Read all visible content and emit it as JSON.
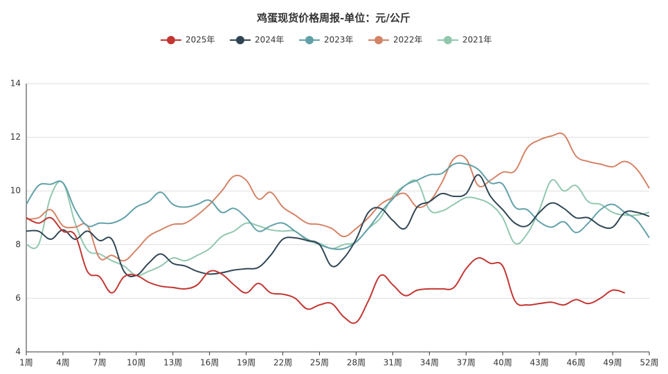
{
  "chart_data": {
    "type": "line",
    "title": "鸡蛋现货价格周报-单位：元/公斤",
    "categories": [
      "1周",
      null,
      null,
      "4周",
      null,
      null,
      "7周",
      null,
      null,
      "10周",
      null,
      null,
      "13周",
      null,
      null,
      "16周",
      null,
      null,
      "19周",
      null,
      null,
      "22周",
      null,
      null,
      "25周",
      null,
      null,
      "28周",
      null,
      null,
      "31周",
      null,
      null,
      "34周",
      null,
      null,
      "37周",
      null,
      null,
      "40周",
      null,
      null,
      "43周",
      null,
      null,
      "46周",
      null,
      null,
      "49周",
      null,
      null,
      "52周"
    ],
    "series": [
      {
        "name": "2025年",
        "color": "#c23531",
        "values": [
          9.0,
          8.8,
          9.0,
          8.5,
          8.35,
          7.0,
          6.8,
          6.2,
          6.8,
          6.85,
          6.6,
          6.45,
          6.4,
          6.35,
          6.5,
          7.0,
          6.9,
          6.5,
          6.2,
          6.55,
          6.2,
          6.15,
          6.0,
          5.6,
          5.75,
          5.8,
          5.3,
          5.1,
          5.9,
          6.85,
          6.5,
          6.1,
          6.3,
          6.35,
          6.35,
          6.4,
          7.1,
          7.5,
          7.3,
          7.2,
          5.9,
          5.75,
          5.8,
          5.85,
          5.75,
          5.95,
          5.8,
          6.0,
          6.3,
          6.2,
          null,
          null
        ]
      },
      {
        "name": "2024年",
        "color": "#2f4554",
        "values": [
          8.5,
          8.5,
          8.2,
          8.55,
          8.2,
          8.5,
          8.15,
          8.2,
          7.0,
          6.85,
          7.3,
          7.65,
          7.3,
          7.2,
          7.0,
          6.9,
          6.95,
          7.05,
          7.1,
          7.15,
          7.6,
          8.2,
          8.25,
          8.15,
          8.0,
          7.2,
          7.5,
          8.2,
          9.2,
          9.35,
          8.9,
          8.6,
          9.4,
          9.6,
          9.9,
          9.8,
          9.9,
          10.6,
          9.8,
          9.3,
          8.8,
          8.7,
          9.2,
          9.55,
          9.35,
          9.0,
          9.0,
          8.7,
          8.65,
          9.2,
          9.2,
          9.05
        ]
      },
      {
        "name": "2023年",
        "color": "#61a0a8",
        "values": [
          9.5,
          10.2,
          10.25,
          10.3,
          9.3,
          8.7,
          8.8,
          8.8,
          9.0,
          9.4,
          9.6,
          9.95,
          9.5,
          9.4,
          9.5,
          9.65,
          9.2,
          9.35,
          9.0,
          8.5,
          8.7,
          8.8,
          8.5,
          8.2,
          8.0,
          7.85,
          7.85,
          8.1,
          8.6,
          9.2,
          9.7,
          10.2,
          10.4,
          10.6,
          10.65,
          11.0,
          11.0,
          10.8,
          10.3,
          10.25,
          9.4,
          9.3,
          8.85,
          8.65,
          8.85,
          8.45,
          8.8,
          9.3,
          9.5,
          9.2,
          8.9,
          8.25
        ]
      },
      {
        "name": "2022年",
        "color": "#d48265",
        "values": [
          8.95,
          9.0,
          9.3,
          8.7,
          8.65,
          8.7,
          7.5,
          7.6,
          7.4,
          7.8,
          8.3,
          8.55,
          8.75,
          8.8,
          9.1,
          9.5,
          10.0,
          10.55,
          10.4,
          9.7,
          9.95,
          9.4,
          9.1,
          8.8,
          8.75,
          8.6,
          8.3,
          8.6,
          9.0,
          9.5,
          9.75,
          9.9,
          9.4,
          9.6,
          10.3,
          11.2,
          11.2,
          10.2,
          10.4,
          10.7,
          10.75,
          11.6,
          11.9,
          12.05,
          12.1,
          11.3,
          11.1,
          11.0,
          10.9,
          11.1,
          10.8,
          10.1
        ]
      },
      {
        "name": "2021年",
        "color": "#91c7ae",
        "values": [
          8.0,
          8.0,
          9.8,
          10.3,
          8.8,
          7.8,
          7.65,
          7.4,
          7.2,
          6.85,
          7.0,
          7.2,
          7.5,
          7.4,
          7.6,
          7.85,
          8.3,
          8.5,
          8.8,
          8.7,
          8.55,
          8.5,
          8.5,
          8.15,
          8.05,
          7.85,
          8.0,
          8.1,
          8.6,
          9.0,
          9.8,
          10.2,
          10.35,
          9.3,
          9.25,
          9.5,
          9.75,
          9.7,
          9.5,
          9.0,
          8.05,
          8.4,
          9.3,
          10.4,
          10.0,
          10.2,
          9.6,
          9.5,
          9.2,
          9.1,
          9.1,
          9.2
        ]
      }
    ],
    "ylim": [
      4,
      14
    ],
    "yticks": [
      4,
      6,
      8,
      10,
      12,
      14
    ],
    "grid": true
  }
}
